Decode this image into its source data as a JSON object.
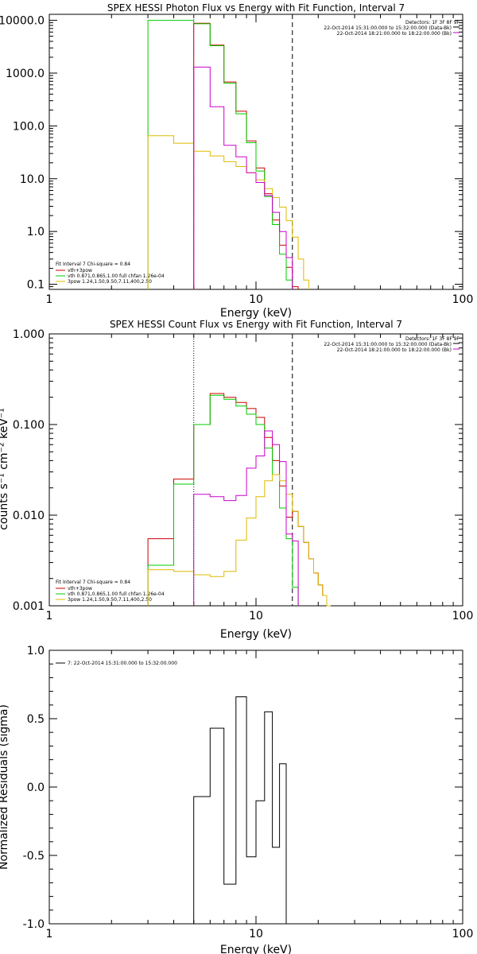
{
  "chart_data": [
    {
      "type": "line",
      "title": "SPEX HESSI Photon Flux vs Energy with Fit Function, Interval 7",
      "xlabel": "Energy (keV)",
      "ylabel": "",
      "xscale": "log",
      "yscale": "log",
      "xlim": [
        1,
        100
      ],
      "ylim": [
        0.08,
        13000
      ],
      "x_ticks": [
        "1",
        "10",
        "100"
      ],
      "y_ticks": [
        "10000.0",
        "1000.0",
        "100.0",
        "10.0",
        "1.0",
        "0.1"
      ],
      "y_tick_values": [
        10000,
        1000,
        100,
        10,
        1,
        0.1
      ],
      "header": [
        "Detectors: 1F 3F 8F 9F",
        "22-Oct-2014 15:31:00.000 to 15:32:00.000 (Data-Bk)",
        "22-Oct-2014 18:21:00.000 to 18:22:00.000 (Bk)"
      ],
      "legend_title": "Fit Interval 7   Chi-square = 0.84",
      "legend_position": "bottom-left",
      "vlines": [
        {
          "x": 5.0,
          "color": "#ff00ff",
          "style": "dotted"
        },
        {
          "x": 15.0,
          "color": "#000000",
          "style": "dashed"
        }
      ],
      "bin_edges": [
        3,
        4,
        5,
        6,
        7,
        8,
        9,
        10,
        11,
        12,
        13,
        14,
        15,
        16,
        17,
        18,
        19
      ],
      "series": [
        {
          "name": "vth+3pow",
          "color": "#cc0000",
          "values": [
            null,
            null,
            8800,
            3400,
            680,
            190,
            52,
            16,
            5.2,
            1.65,
            0.55,
            0.21,
            0.09,
            null,
            null,
            null
          ]
        },
        {
          "name": "vth 0.871,0.865,1.00  full chfan 1.26e-04",
          "color": "#00cc00",
          "values": [
            10000,
            10000,
            8600,
            3300,
            640,
            170,
            48,
            14,
            4.6,
            1.35,
            0.37,
            0.12,
            null,
            null,
            null,
            null
          ]
        },
        {
          "name": "3pow 1.24,1.50,9.50,7.11,400,2.50",
          "color": "#ddbb00",
          "values": [
            65,
            47,
            33,
            27,
            21,
            17,
            13,
            9.5,
            6.5,
            4.4,
            2.9,
            1.6,
            0.78,
            0.3,
            0.12,
            null
          ]
        },
        {
          "name": "",
          "color": "#cc00cc",
          "values": [
            null,
            null,
            1300,
            230,
            43,
            26,
            13,
            8.5,
            4.8,
            2.3,
            1.0,
            0.32,
            null,
            null,
            null,
            null
          ]
        }
      ]
    },
    {
      "type": "line",
      "title": "SPEX HESSI Count Flux vs Energy with Fit Function, Interval 7",
      "xlabel": "Energy (keV)",
      "ylabel": "counts s⁻¹ cm⁻² keV⁻¹",
      "xscale": "log",
      "yscale": "log",
      "xlim": [
        1,
        100
      ],
      "ylim": [
        0.001,
        1
      ],
      "x_ticks": [
        "1",
        "10",
        "100"
      ],
      "y_ticks": [
        "1.000",
        "0.100",
        "0.010",
        "0.001"
      ],
      "y_tick_values": [
        1,
        0.1,
        0.01,
        0.001
      ],
      "header": [
        "Detectors: 1F 3F 8F 9F",
        "22-Oct-2014 15:31:00.000 to 15:32:00.000 (Data-Bk)",
        "22-Oct-2014 18:21:00.000 to 18:22:00.000 (Bk)"
      ],
      "legend_title": "Fit Interval 7   Chi-square = 0.84",
      "legend_position": "bottom-left",
      "vlines": [
        {
          "x": 5.0,
          "color": "#000000",
          "style": "dotted"
        },
        {
          "x": 15.0,
          "color": "#000000",
          "style": "dashed"
        }
      ],
      "bin_edges": [
        3,
        4,
        5,
        6,
        7,
        8,
        9,
        10,
        11,
        12,
        13,
        14,
        15,
        16,
        17,
        18,
        19,
        20,
        21,
        22,
        23,
        24,
        25
      ],
      "series": [
        {
          "name": "vth+3pow",
          "color": "#cc0000",
          "values": [
            0.0055,
            0.025,
            0.1,
            0.22,
            0.2,
            0.175,
            0.15,
            0.12,
            0.072,
            0.04,
            0.021,
            0.0095,
            0.011,
            0.0075,
            0.005,
            0.0033,
            0.0023,
            0.0017,
            0.0013,
            0.001,
            null,
            null
          ]
        },
        {
          "name": "vth 0.871,0.865,1.00  full chfan 1.26e-04",
          "color": "#00cc00",
          "values": [
            0.0028,
            0.022,
            0.1,
            0.21,
            0.19,
            0.16,
            0.13,
            0.1,
            0.055,
            0.028,
            0.012,
            0.0055,
            0.0016,
            null,
            null,
            null,
            null,
            null,
            null,
            null,
            null,
            null
          ]
        },
        {
          "name": "3pow 1.24,1.50,9.50,7.11,400,2.50",
          "color": "#ddbb00",
          "values": [
            0.0025,
            0.0024,
            0.0022,
            0.0021,
            0.0024,
            0.0053,
            0.0093,
            0.016,
            0.024,
            0.028,
            0.024,
            0.017,
            0.011,
            0.0075,
            0.005,
            0.0033,
            0.0023,
            0.0017,
            0.0013,
            0.001,
            null,
            null
          ]
        },
        {
          "name": "",
          "color": "#cc00cc",
          "values": [
            null,
            null,
            0.017,
            0.016,
            0.0145,
            0.0165,
            0.033,
            0.045,
            0.085,
            0.06,
            0.039,
            0.0062,
            0.0052,
            null,
            null,
            null,
            null,
            null,
            null,
            null,
            null,
            null
          ]
        }
      ]
    },
    {
      "type": "line",
      "title": "",
      "xlabel": "Energy (keV)",
      "ylabel": "Normalized Residuals (sigma)",
      "xscale": "log",
      "yscale": "linear",
      "xlim": [
        1,
        100
      ],
      "ylim": [
        -1.0,
        1.0
      ],
      "x_ticks": [
        "1",
        "10",
        "100"
      ],
      "y_ticks": [
        "1.0",
        "0.5",
        "0.0",
        "-0.5",
        "-1.0"
      ],
      "y_tick_values": [
        1.0,
        0.5,
        0.0,
        -0.5,
        -1.0
      ],
      "legend_title": "7: 22-Oct-2014 15:31:00.000 to 15:32:00.000",
      "legend_position": "top-left",
      "bin_edges": [
        5,
        6,
        7,
        8,
        9,
        10,
        11,
        12,
        13,
        14,
        15
      ],
      "series": [
        {
          "name": "7: 22-Oct-2014 15:31:00.000 to 15:32:00.000",
          "color": "#000000",
          "values": [
            -0.07,
            0.43,
            -0.71,
            0.66,
            -0.51,
            -0.1,
            0.55,
            -0.44,
            0.17,
            null
          ]
        }
      ]
    }
  ]
}
